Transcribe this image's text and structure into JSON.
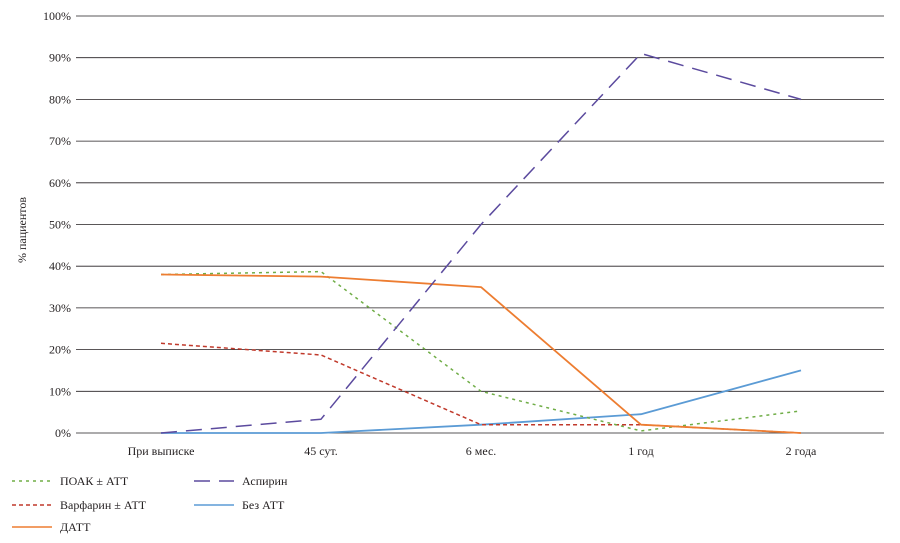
{
  "chart_data": {
    "type": "line",
    "categories": [
      "При выписке",
      "45 сут.",
      "6 мес.",
      "1 год",
      "2 года"
    ],
    "ylabel": "% пациентов",
    "xlabel": "",
    "title": "",
    "ylim": [
      0,
      100
    ],
    "yticks": [
      "0%",
      "10%",
      "20%",
      "30%",
      "40%",
      "50%",
      "60%",
      "70%",
      "80%",
      "90%",
      "100%"
    ],
    "ytick_values": [
      0,
      10,
      20,
      30,
      40,
      50,
      60,
      70,
      80,
      90,
      100
    ],
    "grid": true,
    "legend_position": "bottom-left",
    "series": [
      {
        "name": "ПОАК ± АТТ",
        "values": [
          38,
          38.7,
          10,
          0.5,
          5.3
        ],
        "color": "#70ad47",
        "dash": "dotted"
      },
      {
        "name": "Аспирин",
        "values": [
          0,
          3.3,
          50,
          91,
          80
        ],
        "color": "#5b4a9e",
        "dash": "long-dash"
      },
      {
        "name": "Варфарин ± АТТ",
        "values": [
          21.5,
          18.7,
          2,
          2,
          0
        ],
        "color": "#c0392b",
        "dash": "short-dash"
      },
      {
        "name": "Без АТТ",
        "values": [
          0,
          0,
          2,
          4.5,
          15
        ],
        "color": "#5b9bd5",
        "dash": "solid"
      },
      {
        "name": "ДАТТ",
        "values": [
          38,
          37.5,
          35,
          2,
          0
        ],
        "color": "#ed7d31",
        "dash": "solid"
      }
    ]
  }
}
